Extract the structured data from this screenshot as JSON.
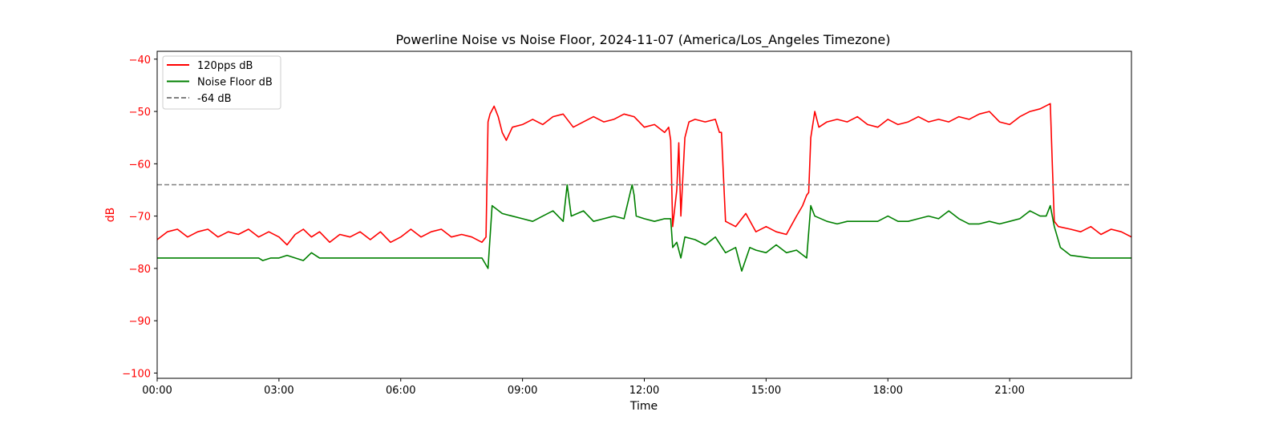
{
  "chart_data": {
    "type": "line",
    "title": "Powerline Noise vs Noise Floor, 2024-11-07 (America/Los_Angeles Timezone)",
    "xlabel": "Time",
    "ylabel": "dB",
    "x_unit": "hours since 00:00",
    "xlim": [
      0,
      24
    ],
    "ylim": [
      -101,
      -38.5
    ],
    "xticks": [
      {
        "value": 0,
        "label": "00:00"
      },
      {
        "value": 3,
        "label": "03:00"
      },
      {
        "value": 6,
        "label": "06:00"
      },
      {
        "value": 9,
        "label": "09:00"
      },
      {
        "value": 12,
        "label": "12:00"
      },
      {
        "value": 15,
        "label": "15:00"
      },
      {
        "value": 18,
        "label": "18:00"
      },
      {
        "value": 21,
        "label": "21:00"
      }
    ],
    "yticks": [
      {
        "value": -40,
        "label": "−40"
      },
      {
        "value": -50,
        "label": "−50"
      },
      {
        "value": -60,
        "label": "−60"
      },
      {
        "value": -70,
        "label": "−70"
      },
      {
        "value": -80,
        "label": "−80"
      },
      {
        "value": -90,
        "label": "−90"
      },
      {
        "value": -100,
        "label": "−100"
      }
    ],
    "axis_label_color": "#ff0000",
    "grid": false,
    "legend_position": "upper-left",
    "series": [
      {
        "name": "120pps dB",
        "color": "#ff0000",
        "style": "solid",
        "x": [
          0,
          0.25,
          0.5,
          0.75,
          1.0,
          1.25,
          1.5,
          1.75,
          2.0,
          2.25,
          2.5,
          2.75,
          3.0,
          3.2,
          3.4,
          3.6,
          3.8,
          4.0,
          4.25,
          4.5,
          4.75,
          5.0,
          5.25,
          5.5,
          5.75,
          6.0,
          6.25,
          6.5,
          6.75,
          7.0,
          7.25,
          7.5,
          7.75,
          8.0,
          8.1,
          8.15,
          8.2,
          8.3,
          8.4,
          8.5,
          8.6,
          8.75,
          9.0,
          9.25,
          9.5,
          9.75,
          10.0,
          10.25,
          10.5,
          10.75,
          11.0,
          11.25,
          11.5,
          11.75,
          12.0,
          12.25,
          12.5,
          12.6,
          12.65,
          12.7,
          12.8,
          12.85,
          12.9,
          13.0,
          13.1,
          13.25,
          13.5,
          13.75,
          13.85,
          13.9,
          14.0,
          14.25,
          14.5,
          14.75,
          15.0,
          15.25,
          15.5,
          15.75,
          15.9,
          16.0,
          16.05,
          16.1,
          16.2,
          16.3,
          16.5,
          16.75,
          17.0,
          17.25,
          17.5,
          17.75,
          18.0,
          18.25,
          18.5,
          18.75,
          19.0,
          19.25,
          19.5,
          19.75,
          20.0,
          20.25,
          20.5,
          20.75,
          21.0,
          21.25,
          21.5,
          21.75,
          22.0,
          22.05,
          22.1,
          22.2,
          22.5,
          22.75,
          23.0,
          23.25,
          23.5,
          23.75,
          24.0
        ],
        "y": [
          -74.5,
          -73,
          -72.5,
          -74,
          -73,
          -72.5,
          -74,
          -73,
          -73.5,
          -72.5,
          -74,
          -73,
          -74,
          -75.5,
          -73.5,
          -72.5,
          -74,
          -73,
          -75,
          -73.5,
          -74,
          -73,
          -74.5,
          -73,
          -75,
          -74,
          -72.5,
          -74,
          -73,
          -72.5,
          -74,
          -73.5,
          -74,
          -75,
          -74,
          -52,
          -50.5,
          -49,
          -51,
          -54,
          -55.5,
          -53,
          -52.5,
          -51.5,
          -52.5,
          -51,
          -50.5,
          -53,
          -52,
          -51,
          -52,
          -51.5,
          -50.5,
          -51,
          -53,
          -52.5,
          -54,
          -53,
          -55.5,
          -72,
          -65,
          -56,
          -70,
          -55,
          -52,
          -51.5,
          -52,
          -51.5,
          -54,
          -54,
          -71,
          -72,
          -69.5,
          -73,
          -72,
          -73,
          -73.5,
          -70,
          -68,
          -66,
          -65.5,
          -55,
          -50,
          -53,
          -52,
          -51.5,
          -52,
          -51,
          -52.5,
          -53,
          -51.5,
          -52.5,
          -52,
          -51,
          -52,
          -51.5,
          -52,
          -51,
          -51.5,
          -50.5,
          -50,
          -52,
          -52.5,
          -51,
          -50,
          -49.5,
          -48.5,
          -60,
          -71,
          -72,
          -72.5,
          -73,
          -72,
          -73.5,
          -72.5,
          -73,
          -74
        ]
      },
      {
        "name": "Noise Floor dB",
        "color": "#008000",
        "style": "solid",
        "x": [
          0,
          0.5,
          1.0,
          1.5,
          2.0,
          2.5,
          2.6,
          2.8,
          3.0,
          3.2,
          3.4,
          3.6,
          3.8,
          4.0,
          4.2,
          4.5,
          5.0,
          5.2,
          5.5,
          6.0,
          6.5,
          7.0,
          7.5,
          7.8,
          8.0,
          8.15,
          8.25,
          8.5,
          9.0,
          9.25,
          9.5,
          9.75,
          10.0,
          10.1,
          10.2,
          10.5,
          10.75,
          11.0,
          11.25,
          11.5,
          11.7,
          11.75,
          11.8,
          12.0,
          12.25,
          12.5,
          12.65,
          12.7,
          12.8,
          12.9,
          13.0,
          13.25,
          13.5,
          13.75,
          14.0,
          14.25,
          14.4,
          14.6,
          14.75,
          15.0,
          15.25,
          15.5,
          15.75,
          16.0,
          16.1,
          16.2,
          16.5,
          16.75,
          17.0,
          17.25,
          17.5,
          17.75,
          18.0,
          18.25,
          18.5,
          18.75,
          19.0,
          19.25,
          19.5,
          19.75,
          20.0,
          20.25,
          20.5,
          20.75,
          21.0,
          21.25,
          21.5,
          21.75,
          21.9,
          22.0,
          22.1,
          22.25,
          22.5,
          23.0,
          23.5,
          24.0
        ],
        "y": [
          -78,
          -78,
          -78,
          -78,
          -78,
          -78,
          -78.5,
          -78,
          -78,
          -77.5,
          -78,
          -78.5,
          -77,
          -78,
          -78,
          -78,
          -78,
          -78,
          -78,
          -78,
          -78,
          -78,
          -78,
          -78,
          -78,
          -80,
          -68,
          -69.5,
          -70.5,
          -71,
          -70,
          -69,
          -71,
          -64,
          -70,
          -69,
          -71,
          -70.5,
          -70,
          -70.5,
          -64,
          -66,
          -70,
          -70.5,
          -71,
          -70.5,
          -70.5,
          -76,
          -75,
          -78,
          -74,
          -74.5,
          -75.5,
          -74,
          -77,
          -76,
          -80.5,
          -76,
          -76.5,
          -77,
          -75.5,
          -77,
          -76.5,
          -78,
          -68,
          -70,
          -71,
          -71.5,
          -71,
          -71,
          -71,
          -71,
          -70,
          -71,
          -71,
          -70.5,
          -70,
          -70.5,
          -69,
          -70.5,
          -71.5,
          -71.5,
          -71,
          -71.5,
          -71,
          -70.5,
          -69,
          -70,
          -70,
          -68,
          -72,
          -76,
          -77.5,
          -78,
          -78,
          -78
        ]
      },
      {
        "name": "-64 dB",
        "color": "#808080",
        "style": "dashed",
        "x": [
          0,
          24
        ],
        "y": [
          -64,
          -64
        ]
      }
    ]
  }
}
